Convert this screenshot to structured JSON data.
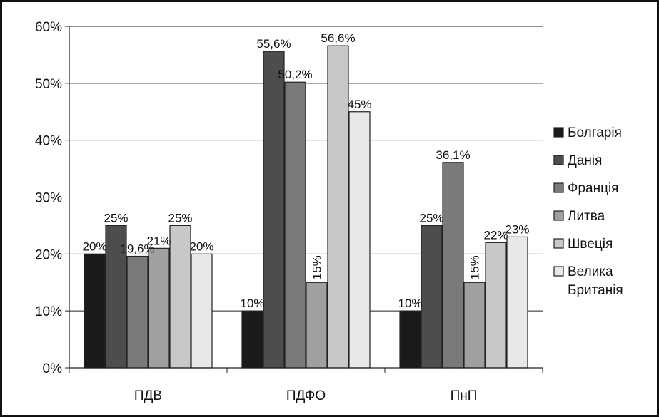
{
  "chart_data": {
    "type": "bar",
    "categories": [
      "ПДВ",
      "ПДФО",
      "ПнП"
    ],
    "ylim": [
      0,
      60
    ],
    "yticks": [
      0,
      10,
      20,
      30,
      40,
      50,
      60
    ],
    "ytick_suffix": "%",
    "grid": true,
    "legend_position": "right",
    "series": [
      {
        "name": "Болгарія",
        "color": "#1a1a1a",
        "values": [
          20,
          10,
          10
        ],
        "labels": [
          "20%",
          "10%",
          "10%"
        ]
      },
      {
        "name": "Данія",
        "color": "#4d4d4d",
        "values": [
          25,
          55.6,
          25
        ],
        "labels": [
          "25%",
          "55,6%",
          "25%"
        ]
      },
      {
        "name": "Франція",
        "color": "#7a7a7a",
        "values": [
          19.6,
          50.2,
          36.1
        ],
        "labels": [
          "19,6%",
          "50,2%",
          "36,1%"
        ]
      },
      {
        "name": "Литва",
        "color": "#a0a0a0",
        "values": [
          21,
          15,
          15
        ],
        "labels": [
          "21%",
          "15%",
          "15%"
        ]
      },
      {
        "name": "Швеція",
        "color": "#c8c8c8",
        "values": [
          25,
          56.6,
          22
        ],
        "labels": [
          "25%",
          "56,6%",
          "22%"
        ]
      },
      {
        "name": "Велика Британія",
        "color": "#e8e8e8",
        "values": [
          20,
          45,
          23
        ],
        "labels": [
          "20%",
          "45%",
          "23%"
        ]
      }
    ]
  }
}
